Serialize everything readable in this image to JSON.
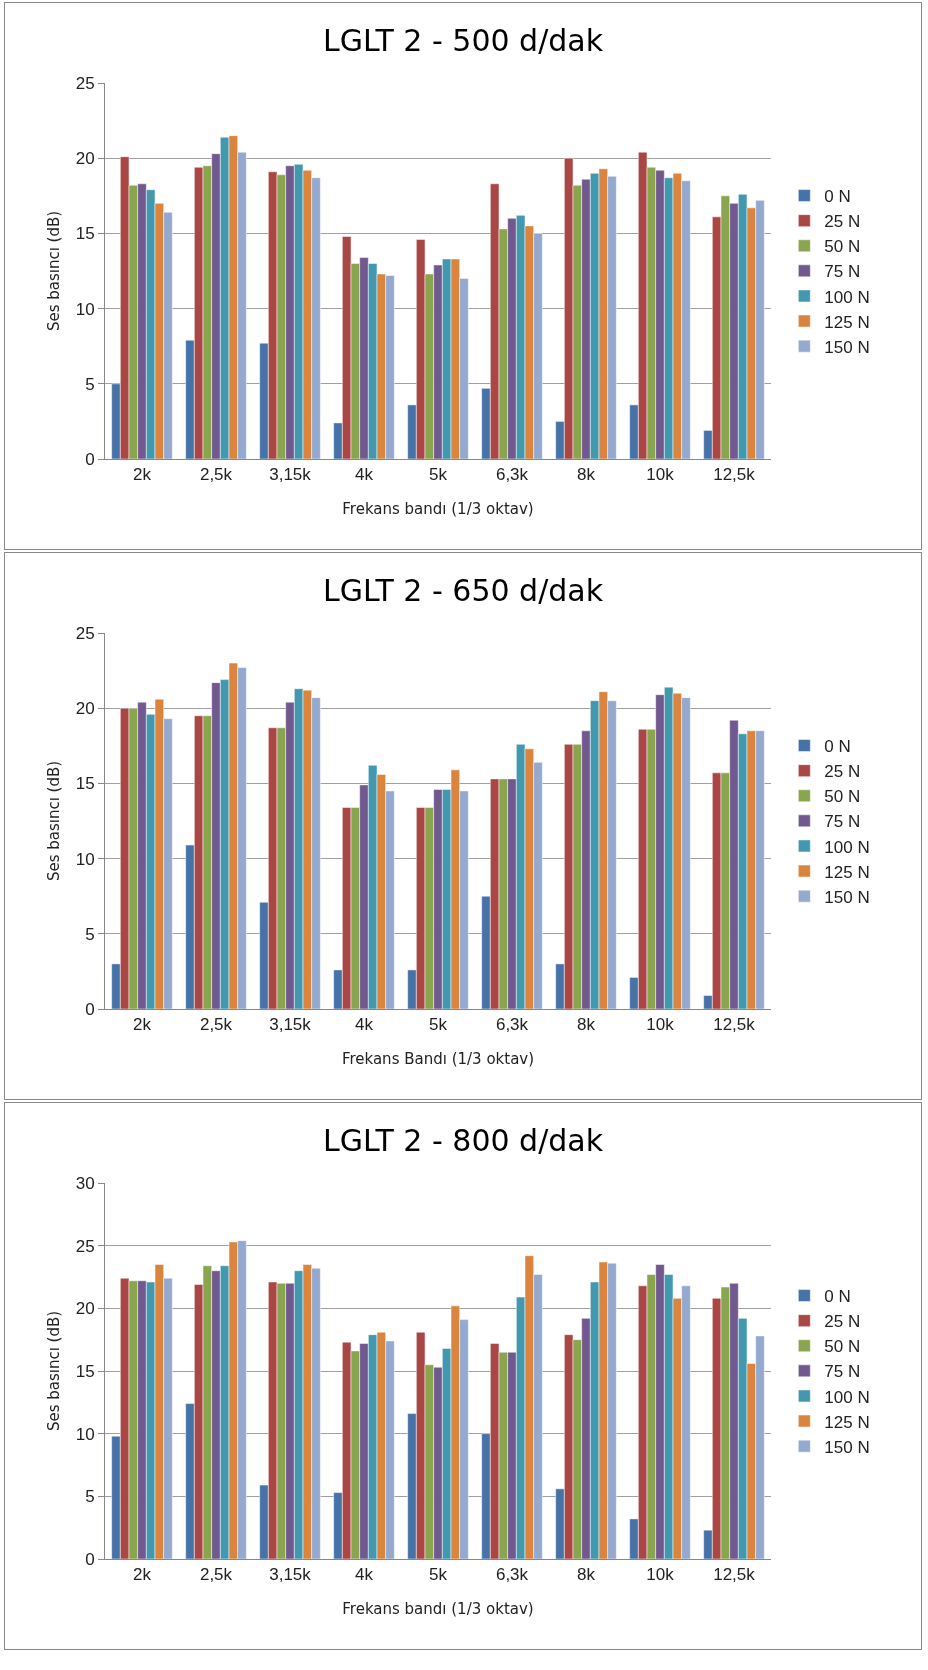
{
  "chart_data": [
    {
      "type": "bar",
      "title": "LGLT 2 - 500 d/dak",
      "xlabel": "Frekans bandı (1/3 oktav)",
      "ylabel": "Ses basıncı (dB)",
      "categories": [
        "2k",
        "2,5k",
        "3,15k",
        "4k",
        "5k",
        "6,3k",
        "8k",
        "10k",
        "12,5k"
      ],
      "ylim": [
        0,
        25
      ],
      "yticks": [
        0,
        5,
        10,
        15,
        20,
        25
      ],
      "grid": "y",
      "legend": "right",
      "series": [
        {
          "name": "0 N",
          "color": "#4572a7",
          "values": [
            5.0,
            7.9,
            7.7,
            2.4,
            3.6,
            4.7,
            2.5,
            3.6,
            1.9
          ]
        },
        {
          "name": "25 N",
          "color": "#aa4643",
          "values": [
            20.1,
            19.4,
            19.1,
            14.8,
            14.6,
            18.3,
            20.0,
            20.4,
            16.1
          ]
        },
        {
          "name": "50 N",
          "color": "#89a54e",
          "values": [
            18.2,
            19.5,
            18.9,
            13.0,
            12.3,
            15.3,
            18.2,
            19.4,
            17.5
          ]
        },
        {
          "name": "75 N",
          "color": "#71588f",
          "values": [
            18.3,
            20.3,
            19.5,
            13.4,
            12.9,
            16.0,
            18.6,
            19.2,
            17.0
          ]
        },
        {
          "name": "100 N",
          "color": "#4198af",
          "values": [
            17.9,
            21.4,
            19.6,
            13.0,
            13.3,
            16.2,
            19.0,
            18.7,
            17.6
          ]
        },
        {
          "name": "125 N",
          "color": "#db843d",
          "values": [
            17.0,
            21.5,
            19.2,
            12.3,
            13.3,
            15.5,
            19.3,
            19.0,
            16.7
          ]
        },
        {
          "name": "150 N",
          "color": "#93a9cf",
          "values": [
            16.4,
            20.4,
            18.7,
            12.2,
            12.0,
            15.0,
            18.8,
            18.5,
            17.2
          ]
        }
      ]
    },
    {
      "type": "bar",
      "title": "LGLT 2 - 650 d/dak",
      "xlabel": "Frekans Bandı (1/3 oktav)",
      "ylabel": "Ses basıncı (dB)",
      "categories": [
        "2k",
        "2,5k",
        "3,15k",
        "4k",
        "5k",
        "6,3k",
        "8k",
        "10k",
        "12,5k"
      ],
      "ylim": [
        0,
        25
      ],
      "yticks": [
        0,
        5,
        10,
        15,
        20,
        25
      ],
      "grid": "y",
      "legend": "right",
      "series": [
        {
          "name": "0 N",
          "color": "#4572a7",
          "values": [
            3.0,
            10.9,
            7.1,
            2.6,
            2.6,
            7.5,
            3.0,
            2.1,
            0.9
          ]
        },
        {
          "name": "25 N",
          "color": "#aa4643",
          "values": [
            20.0,
            19.5,
            18.7,
            13.4,
            13.4,
            15.3,
            17.6,
            18.6,
            15.7
          ]
        },
        {
          "name": "50 N",
          "color": "#89a54e",
          "values": [
            20.0,
            19.5,
            18.7,
            13.4,
            13.4,
            15.3,
            17.6,
            18.6,
            15.7
          ]
        },
        {
          "name": "75 N",
          "color": "#71588f",
          "values": [
            20.4,
            21.7,
            20.4,
            14.9,
            14.6,
            15.3,
            18.5,
            20.9,
            19.2
          ]
        },
        {
          "name": "100 N",
          "color": "#4198af",
          "values": [
            19.6,
            21.9,
            21.3,
            16.2,
            14.6,
            17.6,
            20.5,
            21.4,
            18.3
          ]
        },
        {
          "name": "125 N",
          "color": "#db843d",
          "values": [
            20.6,
            23.0,
            21.2,
            15.6,
            15.9,
            17.3,
            21.1,
            21.0,
            18.5
          ]
        },
        {
          "name": "150 N",
          "color": "#93a9cf",
          "values": [
            19.3,
            22.7,
            20.7,
            14.5,
            14.5,
            16.4,
            20.5,
            20.7,
            18.5
          ]
        }
      ]
    },
    {
      "type": "bar",
      "title": "LGLT 2 - 800 d/dak",
      "xlabel": "Frekans bandı (1/3 oktav)",
      "ylabel": "Ses basıncı (dB)",
      "categories": [
        "2k",
        "2,5k",
        "3,15k",
        "4k",
        "5k",
        "6,3k",
        "8k",
        "10k",
        "12,5k"
      ],
      "ylim": [
        0,
        30
      ],
      "yticks": [
        0,
        5,
        10,
        15,
        20,
        25,
        30
      ],
      "grid": "y",
      "legend": "right",
      "series": [
        {
          "name": "0 N",
          "color": "#4572a7",
          "values": [
            9.8,
            12.4,
            5.9,
            5.3,
            11.6,
            10.0,
            5.6,
            3.2,
            2.3
          ]
        },
        {
          "name": "25 N",
          "color": "#aa4643",
          "values": [
            22.4,
            21.9,
            22.1,
            17.3,
            18.1,
            17.2,
            17.9,
            21.8,
            20.8
          ]
        },
        {
          "name": "50 N",
          "color": "#89a54e",
          "values": [
            22.2,
            23.4,
            22.0,
            16.6,
            15.5,
            16.5,
            17.5,
            22.7,
            21.7
          ]
        },
        {
          "name": "75 N",
          "color": "#71588f",
          "values": [
            22.2,
            23.0,
            22.0,
            17.2,
            15.3,
            16.5,
            19.2,
            23.5,
            22.0
          ]
        },
        {
          "name": "100 N",
          "color": "#4198af",
          "values": [
            22.1,
            23.4,
            23.0,
            17.9,
            16.8,
            20.9,
            22.1,
            22.7,
            19.2
          ]
        },
        {
          "name": "125 N",
          "color": "#db843d",
          "values": [
            23.5,
            25.3,
            23.5,
            18.1,
            20.2,
            24.2,
            23.7,
            20.8,
            15.6
          ]
        },
        {
          "name": "150 N",
          "color": "#93a9cf",
          "values": [
            22.4,
            25.4,
            23.2,
            17.4,
            19.1,
            22.7,
            23.6,
            21.8,
            17.8
          ]
        }
      ]
    }
  ]
}
